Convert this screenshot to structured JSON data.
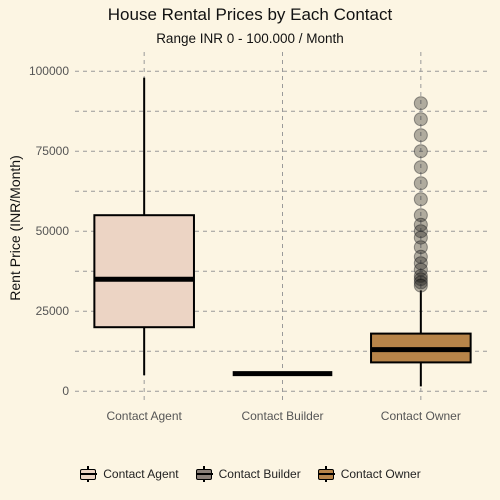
{
  "chart_data": {
    "type": "box",
    "title": "House Rental Prices by Each Contact",
    "subtitle": "Range INR 0 - 100.000 / Month",
    "xlabel": "",
    "ylabel": "Rent Price (INR/Month)",
    "ylim": [
      -4000,
      106000
    ],
    "yticks": [
      0,
      25000,
      50000,
      75000,
      100000
    ],
    "grid": true,
    "legend": "bottom",
    "categories": [
      "Contact Agent",
      "Contact Builder",
      "Contact Owner"
    ],
    "colors": [
      "#ecd4c4",
      "#8a7f79",
      "#b78449"
    ],
    "series": [
      {
        "name": "Contact Agent",
        "min": 5000,
        "q1": 20000,
        "median": 35000,
        "q3": 55000,
        "max": 98000,
        "outliers": []
      },
      {
        "name": "Contact Builder",
        "min": 5500,
        "q1": 5500,
        "median": 5500,
        "q3": 5500,
        "max": 5500,
        "outliers": []
      },
      {
        "name": "Contact Owner",
        "min": 1500,
        "q1": 9000,
        "median": 13000,
        "q3": 18000,
        "max": 31500,
        "outliers": [
          33000,
          34000,
          35000,
          36000,
          38000,
          40000,
          42000,
          45000,
          48000,
          50000,
          52000,
          55000,
          60000,
          65000,
          70000,
          75000,
          80000,
          85000,
          90000
        ]
      }
    ]
  }
}
